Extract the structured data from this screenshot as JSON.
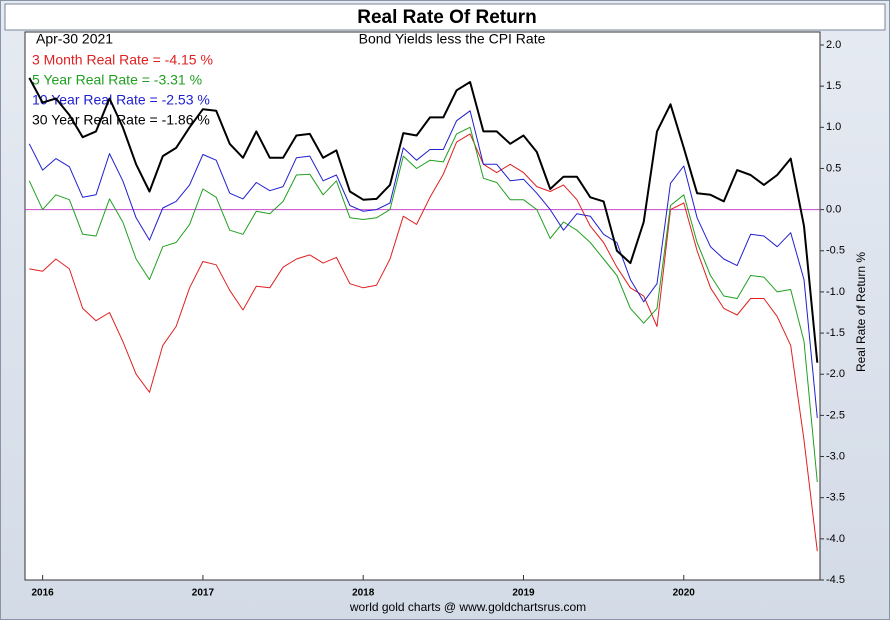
{
  "chart_data": {
    "type": "line",
    "title": "Real Rate Of Return",
    "date": "Apr-30  2021",
    "subtitle": "Bond Yields less the CPI Rate",
    "y_label": "Real Rate of Return %",
    "footer": "world gold charts @ www.goldchartsrus.com",
    "x": [
      2015.917,
      2016.0,
      2016.083,
      2016.167,
      2016.25,
      2016.333,
      2016.417,
      2016.5,
      2016.583,
      2016.667,
      2016.75,
      2016.833,
      2016.917,
      2017.0,
      2017.083,
      2017.167,
      2017.25,
      2017.333,
      2017.417,
      2017.5,
      2017.583,
      2017.667,
      2017.75,
      2017.833,
      2017.917,
      2018.0,
      2018.083,
      2018.167,
      2018.25,
      2018.333,
      2018.417,
      2018.5,
      2018.583,
      2018.667,
      2018.75,
      2018.833,
      2018.917,
      2019.0,
      2019.083,
      2019.167,
      2019.25,
      2019.333,
      2019.417,
      2019.5,
      2019.583,
      2019.667,
      2019.75,
      2019.833,
      2019.917,
      2020.0,
      2020.083,
      2020.167,
      2020.25,
      2020.333,
      2020.417,
      2020.5,
      2020.583,
      2020.667,
      2020.75,
      2020.833
    ],
    "xlim": [
      2015.89,
      2020.85
    ],
    "xticks": [
      2016,
      2017,
      2018,
      2019,
      2020
    ],
    "ylim": [
      -4.5,
      2.0
    ],
    "yticks": [
      {
        "value": 2,
        "label": "2.0"
      },
      1.5,
      {
        "value": 1,
        "label": "1.0"
      },
      0.5,
      {
        "value": 0,
        "label": "0.0"
      },
      -0.5,
      {
        "value": -1,
        "label": "-1.0"
      },
      -1.5,
      {
        "value": -2,
        "label": "-2.0"
      },
      -2.5,
      {
        "value": -3,
        "label": "-3.0"
      },
      -3.5,
      {
        "value": -4,
        "label": "-4.0"
      },
      -4.5
    ],
    "reference_line": {
      "value": 0,
      "color": "#cc44cc"
    },
    "legend": "upper left",
    "series": [
      {
        "name": "3 Month Real Rate = -4.15 %",
        "color": "#e02020",
        "line_width": 1,
        "values": [
          -0.72,
          -0.75,
          -0.6,
          -0.72,
          -1.2,
          -1.35,
          -1.25,
          -1.6,
          -2.0,
          -2.22,
          -1.65,
          -1.42,
          -0.95,
          -0.63,
          -0.67,
          -0.98,
          -1.22,
          -0.93,
          -0.95,
          -0.7,
          -0.6,
          -0.55,
          -0.65,
          -0.58,
          -0.9,
          -0.95,
          -0.92,
          -0.6,
          -0.08,
          -0.18,
          0.15,
          0.43,
          0.82,
          0.92,
          0.55,
          0.45,
          0.55,
          0.45,
          0.28,
          0.22,
          0.3,
          0.12,
          -0.2,
          -0.4,
          -0.7,
          -0.95,
          -1.05,
          -1.42,
          0.0,
          0.08,
          -0.5,
          -0.95,
          -1.2,
          -1.28,
          -1.08,
          -1.08,
          -1.3,
          -1.65,
          -2.8,
          -4.15
        ]
      },
      {
        "name": "5 Year Real Rate = -3.31 %",
        "color": "#20a020",
        "line_width": 1,
        "values": [
          0.35,
          0.0,
          0.18,
          0.12,
          -0.3,
          -0.32,
          0.13,
          -0.15,
          -0.6,
          -0.85,
          -0.45,
          -0.4,
          -0.18,
          0.25,
          0.15,
          -0.25,
          -0.3,
          -0.02,
          -0.05,
          0.1,
          0.42,
          0.43,
          0.18,
          0.35,
          -0.1,
          -0.12,
          -0.1,
          0.0,
          0.65,
          0.5,
          0.6,
          0.58,
          0.92,
          1.0,
          0.38,
          0.33,
          0.12,
          0.12,
          0.0,
          -0.35,
          -0.15,
          -0.25,
          -0.4,
          -0.6,
          -0.8,
          -1.2,
          -1.38,
          -1.2,
          0.05,
          0.18,
          -0.4,
          -0.8,
          -1.05,
          -1.08,
          -0.8,
          -0.82,
          -1.0,
          -0.97,
          -1.6,
          -3.31
        ]
      },
      {
        "name": "10 Year Real Rate = -2.53 %",
        "color": "#2020d0",
        "line_width": 1,
        "values": [
          0.8,
          0.48,
          0.62,
          0.52,
          0.15,
          0.18,
          0.68,
          0.35,
          -0.1,
          -0.37,
          0.02,
          0.1,
          0.3,
          0.67,
          0.6,
          0.2,
          0.13,
          0.33,
          0.23,
          0.28,
          0.63,
          0.65,
          0.35,
          0.42,
          0.05,
          -0.02,
          0.0,
          0.08,
          0.75,
          0.6,
          0.73,
          0.73,
          1.08,
          1.2,
          0.55,
          0.55,
          0.35,
          0.37,
          0.2,
          0.0,
          -0.25,
          -0.05,
          -0.08,
          -0.3,
          -0.4,
          -0.85,
          -1.12,
          -0.9,
          0.32,
          0.53,
          -0.1,
          -0.45,
          -0.6,
          -0.68,
          -0.3,
          -0.32,
          -0.45,
          -0.28,
          -0.85,
          -2.53
        ]
      },
      {
        "name": "30 Year Real Rate = -1.86 %",
        "color": "#000000",
        "line_width": 2,
        "values": [
          1.6,
          1.3,
          1.35,
          1.15,
          0.88,
          0.95,
          1.35,
          1.0,
          0.55,
          0.22,
          0.65,
          0.75,
          1.0,
          1.22,
          1.2,
          0.8,
          0.63,
          0.95,
          0.63,
          0.63,
          0.9,
          0.92,
          0.63,
          0.72,
          0.22,
          0.12,
          0.13,
          0.3,
          0.93,
          0.9,
          1.12,
          1.12,
          1.45,
          1.55,
          0.95,
          0.95,
          0.8,
          0.9,
          0.7,
          0.25,
          0.4,
          0.4,
          0.15,
          0.1,
          -0.5,
          -0.65,
          -0.15,
          0.95,
          1.28,
          0.75,
          0.2,
          0.18,
          0.1,
          0.48,
          0.42,
          0.3,
          0.42,
          0.62,
          -0.2,
          -1.86
        ]
      }
    ]
  }
}
